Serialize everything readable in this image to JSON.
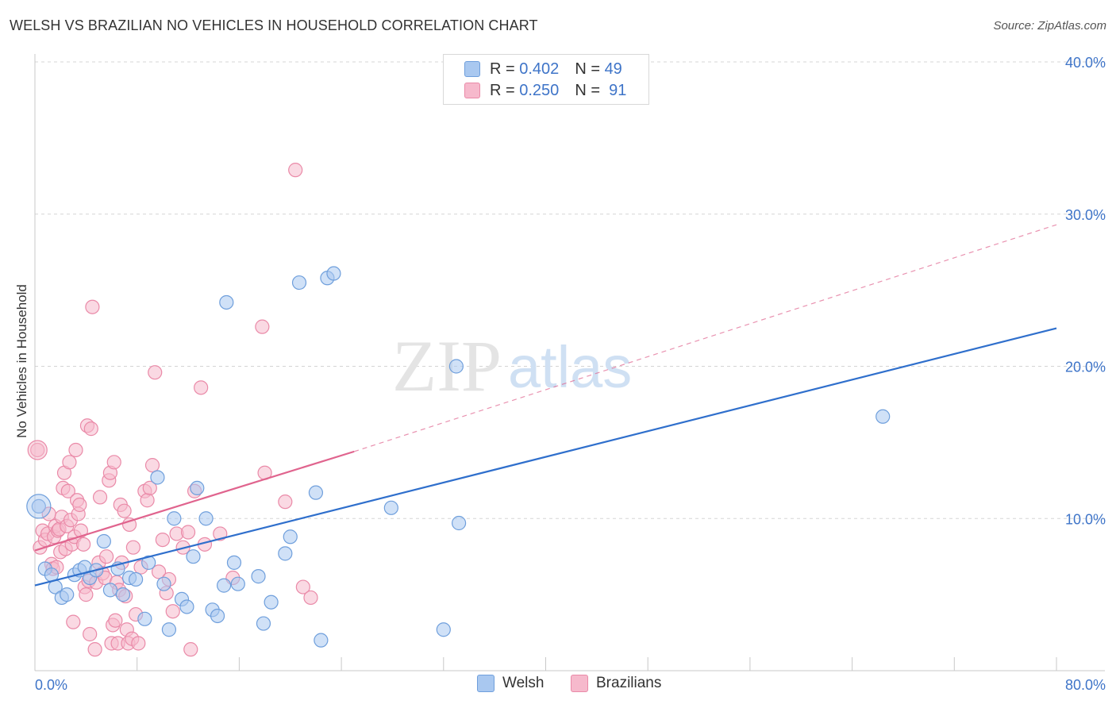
{
  "title": "WELSH VS BRAZILIAN NO VEHICLES IN HOUSEHOLD CORRELATION CHART",
  "source": "Source: ZipAtlas.com",
  "watermark": {
    "zip": "ZIP",
    "atlas": "atlas"
  },
  "legend": {
    "rows": [
      {
        "r_label": "R =",
        "r_value": "0.402",
        "n_label": "N =",
        "n_value": "49"
      },
      {
        "r_label": "R =",
        "r_value": "0.250",
        "n_label": "N =",
        "n_value": "91"
      }
    ]
  },
  "bottom_legend": {
    "welsh": "Welsh",
    "brazilians": "Brazilians"
  },
  "colors": {
    "welsh_fill": "#a9c8f0",
    "welsh_stroke": "#6f9fdc",
    "welsh_line": "#2f6fcc",
    "braz_fill": "#f6b9cc",
    "braz_stroke": "#ea8aa8",
    "braz_line": "#e0648e",
    "tick_text": "#3e74c8",
    "grid": "#d5d5d5"
  },
  "chart_data": {
    "type": "scatter",
    "title": "WELSH VS BRAZILIAN NO VEHICLES IN HOUSEHOLD CORRELATION CHART",
    "xlabel": "",
    "ylabel": "No Vehicles in Household",
    "xlim": [
      0,
      80
    ],
    "ylim": [
      0,
      40
    ],
    "x_tick_labels": [
      "0.0%",
      "80.0%"
    ],
    "y_ticks": [
      10,
      20,
      30,
      40
    ],
    "y_tick_labels": [
      "10.0%",
      "20.0%",
      "30.0%",
      "40.0%"
    ],
    "series": [
      {
        "name": "Welsh",
        "r": 0.402,
        "n": 49,
        "trend": {
          "x0": 0,
          "y0": 5.6,
          "x1": 80,
          "y1": 22.5
        },
        "points": [
          [
            0.3,
            10.8
          ],
          [
            0.8,
            6.7
          ],
          [
            1.3,
            6.3
          ],
          [
            1.6,
            5.5
          ],
          [
            2.1,
            4.8
          ],
          [
            2.5,
            5.0
          ],
          [
            3.1,
            6.3
          ],
          [
            3.5,
            6.6
          ],
          [
            3.9,
            6.8
          ],
          [
            4.3,
            6.1
          ],
          [
            4.8,
            6.6
          ],
          [
            5.4,
            8.5
          ],
          [
            5.9,
            5.3
          ],
          [
            6.5,
            6.7
          ],
          [
            6.9,
            5.0
          ],
          [
            7.4,
            6.1
          ],
          [
            7.9,
            6.0
          ],
          [
            8.6,
            3.4
          ],
          [
            8.9,
            7.1
          ],
          [
            9.6,
            12.7
          ],
          [
            10.1,
            5.7
          ],
          [
            10.5,
            2.7
          ],
          [
            10.9,
            10.0
          ],
          [
            11.5,
            4.7
          ],
          [
            11.9,
            4.2
          ],
          [
            12.4,
            7.5
          ],
          [
            12.7,
            12.0
          ],
          [
            13.4,
            10.0
          ],
          [
            13.9,
            4.0
          ],
          [
            14.3,
            3.6
          ],
          [
            14.8,
            5.6
          ],
          [
            15.0,
            24.2
          ],
          [
            15.6,
            7.1
          ],
          [
            15.9,
            5.7
          ],
          [
            17.5,
            6.2
          ],
          [
            17.9,
            3.1
          ],
          [
            18.5,
            4.5
          ],
          [
            19.6,
            7.7
          ],
          [
            20.0,
            8.8
          ],
          [
            20.7,
            25.5
          ],
          [
            22.0,
            11.7
          ],
          [
            22.4,
            2.0
          ],
          [
            22.9,
            25.8
          ],
          [
            23.4,
            26.1
          ],
          [
            27.9,
            10.7
          ],
          [
            32.0,
            2.7
          ],
          [
            33.2,
            9.7
          ],
          [
            33.0,
            20.0
          ],
          [
            66.4,
            16.7
          ]
        ]
      },
      {
        "name": "Brazilians",
        "r": 0.25,
        "n": 91,
        "trend_solid": {
          "x0": 0,
          "y0": 7.9,
          "x1": 25,
          "y1": 14.4
        },
        "trend_dashed": {
          "x0": 25,
          "y0": 14.4,
          "x1": 80,
          "y1": 29.3
        },
        "points": [
          [
            0.2,
            14.5
          ],
          [
            0.4,
            8.1
          ],
          [
            0.6,
            9.2
          ],
          [
            0.8,
            8.6
          ],
          [
            1.0,
            9.0
          ],
          [
            1.1,
            10.3
          ],
          [
            1.3,
            7.0
          ],
          [
            1.4,
            6.7
          ],
          [
            1.5,
            8.8
          ],
          [
            1.6,
            9.5
          ],
          [
            1.7,
            6.8
          ],
          [
            1.8,
            9.2
          ],
          [
            1.9,
            9.3
          ],
          [
            2.0,
            7.8
          ],
          [
            2.1,
            10.1
          ],
          [
            2.2,
            12.0
          ],
          [
            2.3,
            13.0
          ],
          [
            2.4,
            8.0
          ],
          [
            2.5,
            9.5
          ],
          [
            2.6,
            11.8
          ],
          [
            2.7,
            13.7
          ],
          [
            2.8,
            9.9
          ],
          [
            2.9,
            8.3
          ],
          [
            3.0,
            3.2
          ],
          [
            3.1,
            8.8
          ],
          [
            3.2,
            14.5
          ],
          [
            3.3,
            11.2
          ],
          [
            3.4,
            10.3
          ],
          [
            3.5,
            10.9
          ],
          [
            3.6,
            9.2
          ],
          [
            3.8,
            8.3
          ],
          [
            3.9,
            5.5
          ],
          [
            4.0,
            5.0
          ],
          [
            4.1,
            16.1
          ],
          [
            4.2,
            5.9
          ],
          [
            4.3,
            2.4
          ],
          [
            4.4,
            15.9
          ],
          [
            4.5,
            23.9
          ],
          [
            4.7,
            1.4
          ],
          [
            4.8,
            5.8
          ],
          [
            5.0,
            7.1
          ],
          [
            5.1,
            11.4
          ],
          [
            5.3,
            6.4
          ],
          [
            5.5,
            6.1
          ],
          [
            5.6,
            7.5
          ],
          [
            5.8,
            12.5
          ],
          [
            5.9,
            13.0
          ],
          [
            6.0,
            1.8
          ],
          [
            6.1,
            3.0
          ],
          [
            6.2,
            13.7
          ],
          [
            6.3,
            3.3
          ],
          [
            6.4,
            5.8
          ],
          [
            6.5,
            1.8
          ],
          [
            6.6,
            5.3
          ],
          [
            6.7,
            10.9
          ],
          [
            6.8,
            7.1
          ],
          [
            7.0,
            10.5
          ],
          [
            7.1,
            4.9
          ],
          [
            7.2,
            2.7
          ],
          [
            7.3,
            1.8
          ],
          [
            7.4,
            9.6
          ],
          [
            7.6,
            2.1
          ],
          [
            7.7,
            8.1
          ],
          [
            7.9,
            3.7
          ],
          [
            8.1,
            1.8
          ],
          [
            8.3,
            6.8
          ],
          [
            8.6,
            11.8
          ],
          [
            8.8,
            11.2
          ],
          [
            9.0,
            12.0
          ],
          [
            9.2,
            13.5
          ],
          [
            9.4,
            19.6
          ],
          [
            9.7,
            6.5
          ],
          [
            10.0,
            8.6
          ],
          [
            10.3,
            5.1
          ],
          [
            10.5,
            6.0
          ],
          [
            10.8,
            3.9
          ],
          [
            11.1,
            9.0
          ],
          [
            11.6,
            8.1
          ],
          [
            12.0,
            9.1
          ],
          [
            12.2,
            1.4
          ],
          [
            12.5,
            11.8
          ],
          [
            13.0,
            18.6
          ],
          [
            13.3,
            8.3
          ],
          [
            14.5,
            9.0
          ],
          [
            15.5,
            6.1
          ],
          [
            17.8,
            22.6
          ],
          [
            18.0,
            13.0
          ],
          [
            19.6,
            11.1
          ],
          [
            20.4,
            32.9
          ],
          [
            21.0,
            5.5
          ],
          [
            21.6,
            4.8
          ]
        ]
      }
    ]
  }
}
